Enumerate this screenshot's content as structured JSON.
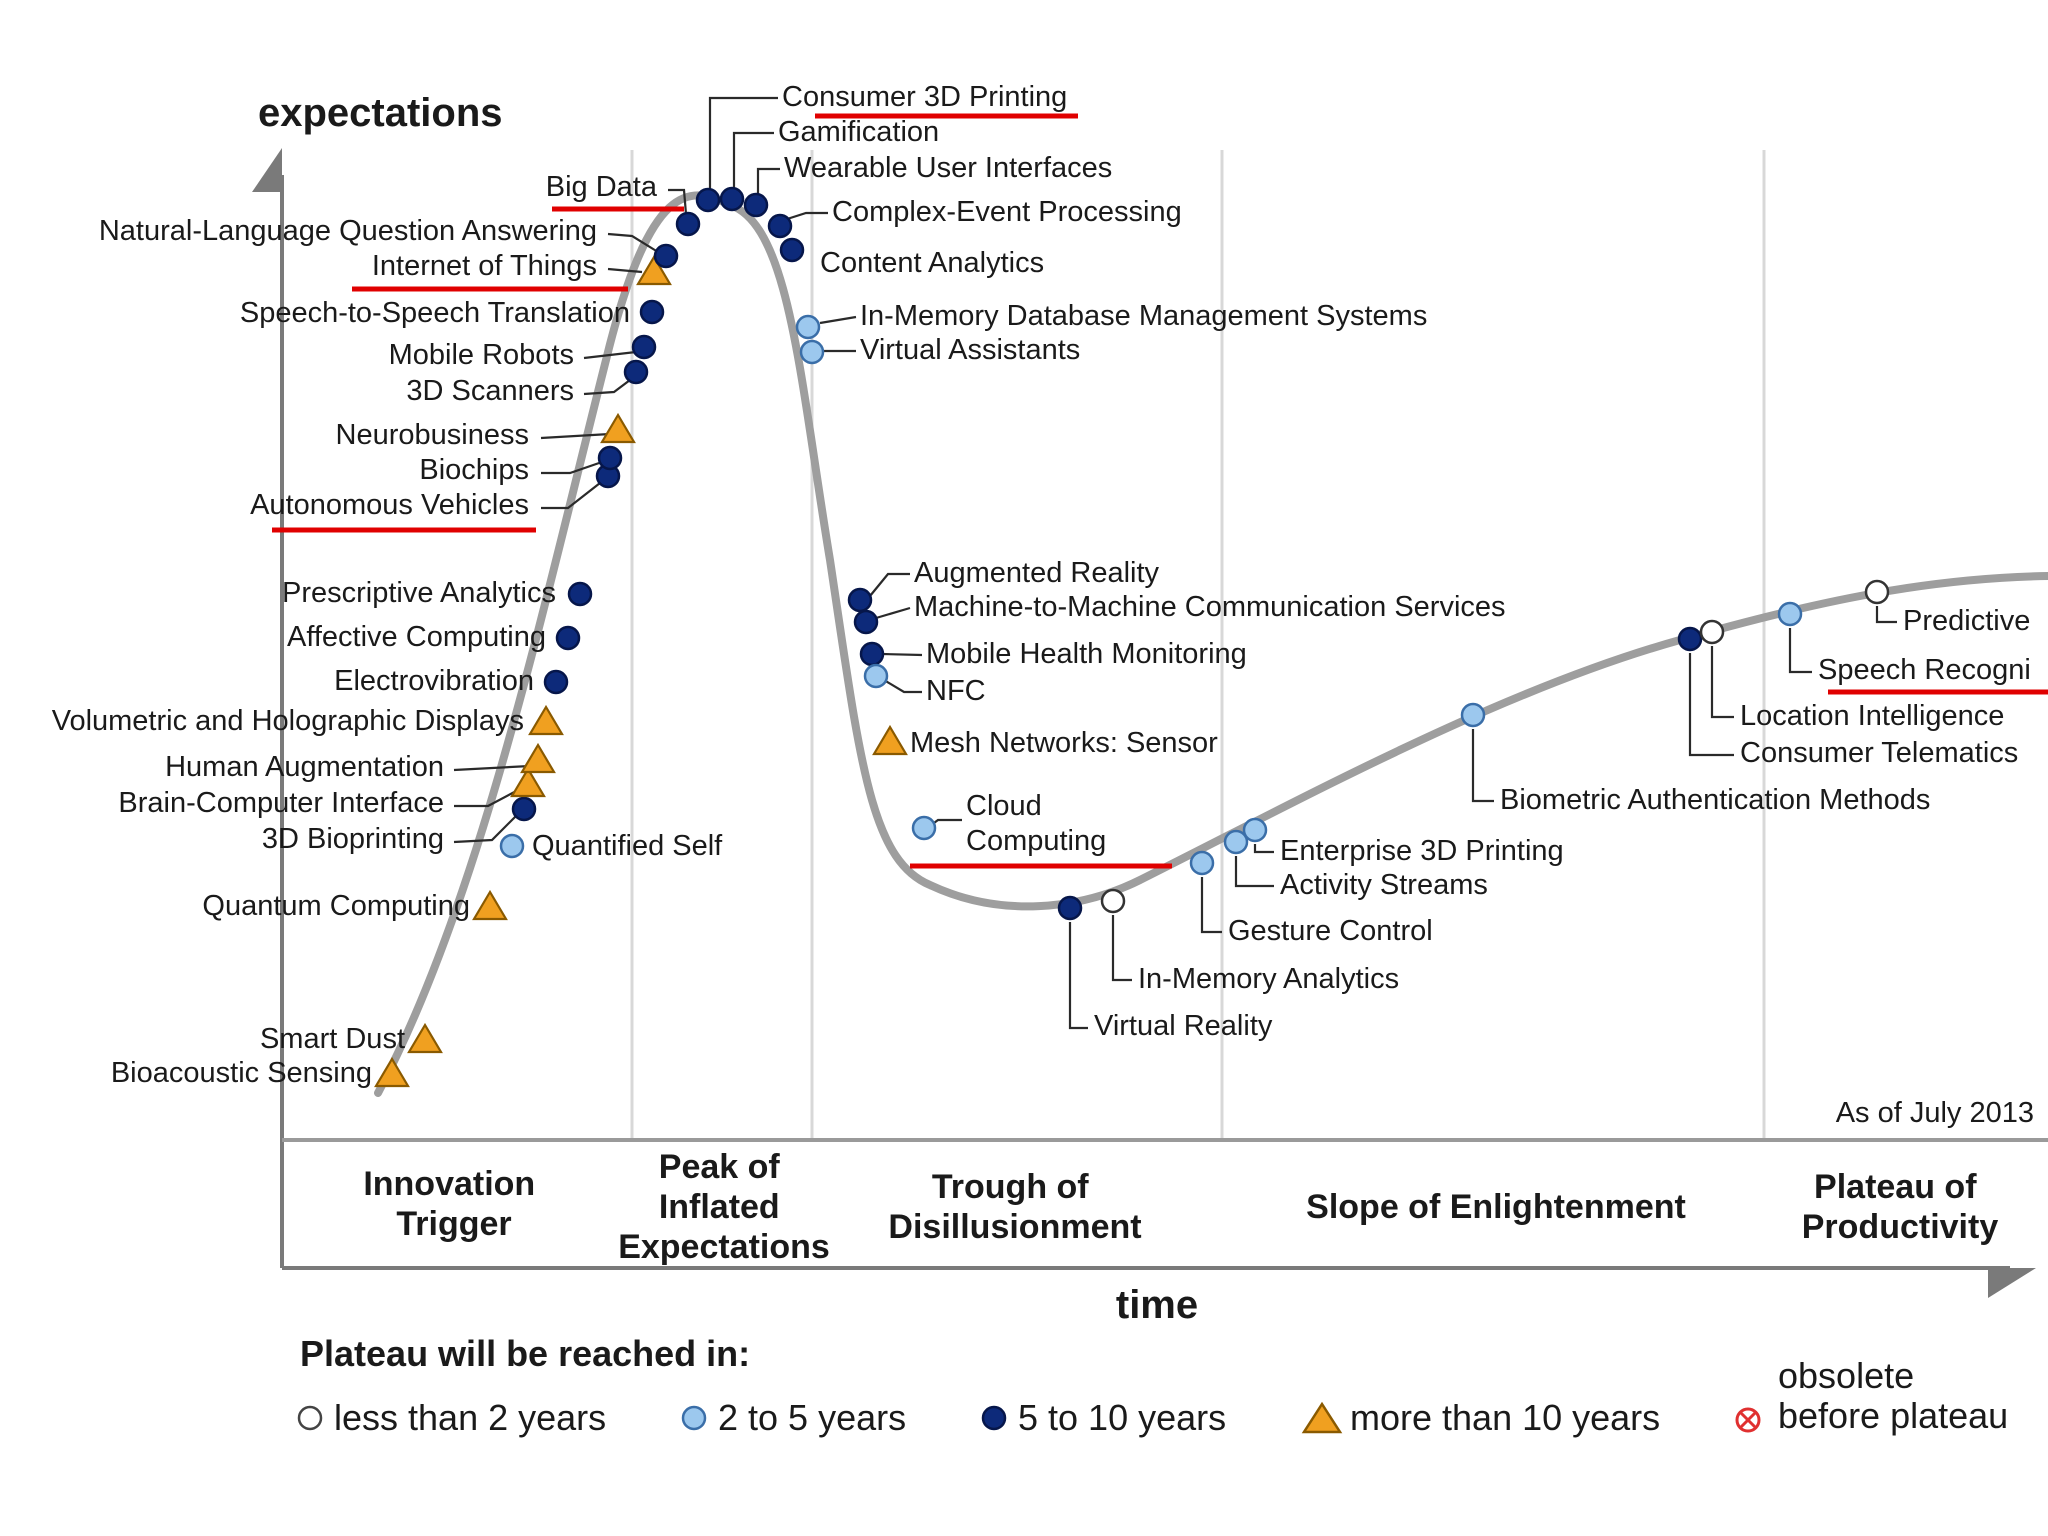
{
  "axes": {
    "y_label": "expectations",
    "x_label": "time"
  },
  "as_of": "As of July 2013",
  "phases": [
    [
      "Innovation",
      "Trigger"
    ],
    [
      "Peak of",
      "Inflated",
      "Expectations"
    ],
    [
      "Trough of",
      "Disillusionment"
    ],
    [
      "Slope of Enlightenment"
    ],
    [
      "Plateau of",
      "Productivity"
    ]
  ],
  "legend": {
    "title": "Plateau will be reached in:",
    "items": [
      {
        "label": "less than 2 years",
        "marker": "hollow-circle"
      },
      {
        "label": "2 to 5 years",
        "marker": "light-circle"
      },
      {
        "label": "5 to 10 years",
        "marker": "dark-circle"
      },
      {
        "label": "more than 10 years",
        "marker": "triangle"
      },
      {
        "label": "obsolete before plateau",
        "marker": "crossed-circle"
      }
    ],
    "obsolete_lines": [
      "obsolete",
      "before plateau"
    ]
  },
  "colors": {
    "curve": "#9e9e9e",
    "dark": "#0d2a7a",
    "light": "#9cc8ee",
    "hollow": "#ffffff",
    "triangle": "#f0a020",
    "underline": "#e00000",
    "axis": "#7a7a7a"
  },
  "technologies": [
    {
      "name": "Bioacoustic Sensing",
      "marker": "triangle",
      "underlined": false
    },
    {
      "name": "Smart Dust",
      "marker": "triangle",
      "underlined": false
    },
    {
      "name": "Quantum Computing",
      "marker": "triangle",
      "underlined": false
    },
    {
      "name": "Quantified Self",
      "marker": "light-circle",
      "underlined": false
    },
    {
      "name": "3D Bioprinting",
      "marker": "dark-circle",
      "underlined": false
    },
    {
      "name": "Brain-Computer Interface",
      "marker": "triangle",
      "underlined": false
    },
    {
      "name": "Human Augmentation",
      "marker": "triangle",
      "underlined": false
    },
    {
      "name": "Volumetric and Holographic Displays",
      "marker": "triangle",
      "underlined": false
    },
    {
      "name": "Electrovibration",
      "marker": "dark-circle",
      "underlined": false
    },
    {
      "name": "Affective Computing",
      "marker": "dark-circle",
      "underlined": false
    },
    {
      "name": "Prescriptive Analytics",
      "marker": "dark-circle",
      "underlined": false
    },
    {
      "name": "Autonomous Vehicles",
      "marker": "dark-circle",
      "underlined": true
    },
    {
      "name": "Biochips",
      "marker": "dark-circle",
      "underlined": false
    },
    {
      "name": "Neurobusiness",
      "marker": "triangle",
      "underlined": false
    },
    {
      "name": "3D Scanners",
      "marker": "dark-circle",
      "underlined": false
    },
    {
      "name": "Mobile Robots",
      "marker": "dark-circle",
      "underlined": false
    },
    {
      "name": "Speech-to-Speech Translation",
      "marker": "dark-circle",
      "underlined": false
    },
    {
      "name": "Internet of Things",
      "marker": "triangle",
      "underlined": true
    },
    {
      "name": "Natural-Language Question Answering",
      "marker": "dark-circle",
      "underlined": false
    },
    {
      "name": "Big Data",
      "marker": "dark-circle",
      "underlined": true
    },
    {
      "name": "Consumer 3D Printing",
      "marker": "dark-circle",
      "underlined": true
    },
    {
      "name": "Gamification",
      "marker": "dark-circle",
      "underlined": false
    },
    {
      "name": "Wearable User Interfaces",
      "marker": "dark-circle",
      "underlined": false
    },
    {
      "name": "Complex-Event Processing",
      "marker": "dark-circle",
      "underlined": false
    },
    {
      "name": "Content Analytics",
      "marker": "dark-circle",
      "underlined": false
    },
    {
      "name": "In-Memory Database Management Systems",
      "marker": "light-circle",
      "underlined": false
    },
    {
      "name": "Virtual Assistants",
      "marker": "light-circle",
      "underlined": false
    },
    {
      "name": "Augmented Reality",
      "marker": "dark-circle",
      "underlined": false
    },
    {
      "name": "Machine-to-Machine Communication Services",
      "marker": "dark-circle",
      "underlined": false
    },
    {
      "name": "Mobile Health Monitoring",
      "marker": "dark-circle",
      "underlined": false
    },
    {
      "name": "NFC",
      "marker": "light-circle",
      "underlined": false
    },
    {
      "name": "Mesh Networks: Sensor",
      "marker": "triangle",
      "underlined": false
    },
    {
      "name": "Cloud Computing",
      "marker": "light-circle",
      "underlined": true,
      "lines": [
        "Cloud",
        "Computing"
      ]
    },
    {
      "name": "Virtual Reality",
      "marker": "dark-circle",
      "underlined": false
    },
    {
      "name": "In-Memory Analytics",
      "marker": "hollow-circle",
      "underlined": false
    },
    {
      "name": "Gesture Control",
      "marker": "light-circle",
      "underlined": false
    },
    {
      "name": "Activity Streams",
      "marker": "light-circle",
      "underlined": false
    },
    {
      "name": "Enterprise 3D Printing",
      "marker": "light-circle",
      "underlined": false
    },
    {
      "name": "Biometric Authentication Methods",
      "marker": "light-circle",
      "underlined": false
    },
    {
      "name": "Consumer Telematics",
      "marker": "dark-circle",
      "underlined": false
    },
    {
      "name": "Location Intelligence",
      "marker": "hollow-circle",
      "underlined": false
    },
    {
      "name": "Speech Recogni",
      "marker": "light-circle",
      "underlined": true
    },
    {
      "name": "Predictive",
      "marker": "hollow-circle",
      "underlined": false
    }
  ]
}
